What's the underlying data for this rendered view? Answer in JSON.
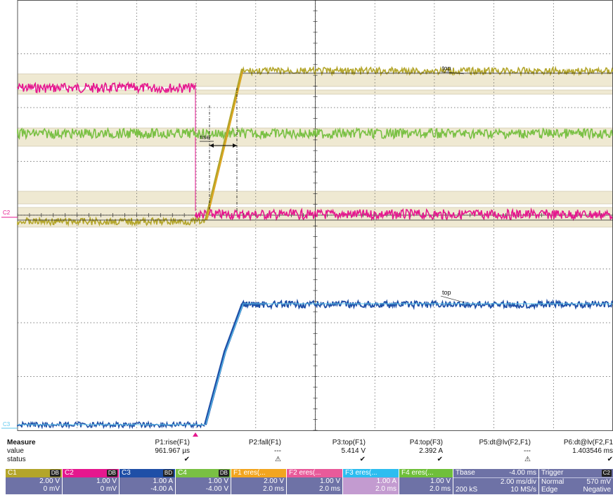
{
  "colors": {
    "c1": "#b3a52a",
    "c2": "#e5178e",
    "c3": "#1f4fa7",
    "c4": "#79c043",
    "c3_light": "#5cc7ee",
    "grid": "#555555",
    "band": "#efe9d2",
    "panel": "#6e72a6"
  },
  "markers": {
    "c2": "C2",
    "c3": "C3",
    "rise_label": "rise",
    "top_label_1": "top",
    "top_label_2": "top"
  },
  "measure": {
    "title": "Measure",
    "row_value": "value",
    "row_status": "status",
    "columns": [
      {
        "name": "P1:rise(F1)",
        "value": "961.967 µs",
        "status": "✔"
      },
      {
        "name": "P2:fall(F1)",
        "value": "---",
        "status": "⚠"
      },
      {
        "name": "P3:top(F1)",
        "value": "5.414 V",
        "status": "✔"
      },
      {
        "name": "P4:top(F3)",
        "value": "2.392 A",
        "status": "✔"
      },
      {
        "name": "P5:dt@lv(F2,F1)",
        "value": "---",
        "status": "⚠"
      },
      {
        "name": "P6:dt@lv(F2,F1",
        "value": "1.403546 ms",
        "status": "✔"
      }
    ]
  },
  "channels": [
    {
      "name": "C1",
      "tag": "DB",
      "head_color": "#b3a52a",
      "line1": "2.00 V",
      "line2": "0 mV"
    },
    {
      "name": "C2",
      "tag": "DB",
      "head_color": "#e5178e",
      "line1": "1.00 V",
      "line2": "0 mV"
    },
    {
      "name": "C3",
      "tag": "BD",
      "head_color": "#1f4fa7",
      "line1": "1.00 A",
      "line2": "-4.00 A"
    },
    {
      "name": "C4",
      "tag": "DB",
      "head_color": "#79c043",
      "line1": "1.00 V",
      "line2": "-4.00 V"
    },
    {
      "name": "F1",
      "tag": "eres(...",
      "head_color": "#f2a51f",
      "line1": "2.00 V",
      "line2": "2.0 ms"
    },
    {
      "name": "F2",
      "tag": "eres(...",
      "head_color": "#e85a9a",
      "line1": "1.00 V",
      "line2": "2.0 ms"
    },
    {
      "name": "F3",
      "tag": "eres(...",
      "head_color": "#2dbdf0",
      "line1": "1.00 A",
      "line2": "2.0 ms"
    },
    {
      "name": "F4",
      "tag": "eres(...",
      "head_color": "#6fbf3a",
      "line1": "1.00 V",
      "line2": "2.0 ms"
    }
  ],
  "timebase": {
    "label": "Tbase",
    "offset": "-4.00 ms",
    "div": "2.00 ms/div",
    "samples": "200 kS",
    "rate": "10 MS/s"
  },
  "trigger": {
    "label": "Trigger",
    "channel": "C2",
    "mode": "Normal",
    "level": "570 mV",
    "type": "Edge",
    "slope": "Negative"
  }
}
